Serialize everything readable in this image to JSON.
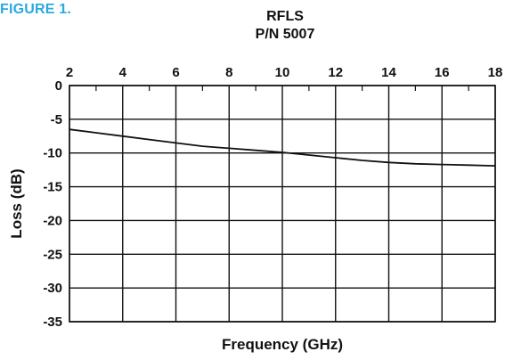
{
  "figure_label": "FIGURE 1.",
  "chart_data": {
    "type": "line",
    "title": "RFLS",
    "subtitle": "P/N 5007",
    "xlabel": "Frequency (GHz)",
    "ylabel": "Loss (dB)",
    "xlim": [
      2,
      18
    ],
    "ylim": [
      -35,
      0
    ],
    "x_ticks": [
      2,
      4,
      6,
      8,
      10,
      12,
      14,
      16,
      18
    ],
    "y_ticks": [
      0,
      -5,
      -10,
      -15,
      -20,
      -25,
      -30,
      -35
    ],
    "x_tick_labels": [
      "2",
      "4",
      "6",
      "8",
      "10",
      "12",
      "14",
      "16",
      "18"
    ],
    "y_tick_labels": [
      "0",
      "-5",
      "-10",
      "-15",
      "-20",
      "-25",
      "-30",
      "-35"
    ],
    "x_axis_position": "top",
    "grid": true,
    "series": [
      {
        "x": [
          2,
          3,
          4,
          5,
          6,
          7,
          8,
          9,
          10,
          11,
          12,
          13,
          14,
          15,
          16,
          17,
          18
        ],
        "y": [
          -6.5,
          -7.0,
          -7.5,
          -8.0,
          -8.5,
          -9.0,
          -9.3,
          -9.6,
          -9.9,
          -10.3,
          -10.7,
          -11.1,
          -11.4,
          -11.6,
          -11.7,
          -11.8,
          -11.9
        ]
      }
    ],
    "colors": {
      "line": "#111111",
      "grid": "#111111",
      "label": "#29a9e0"
    }
  }
}
